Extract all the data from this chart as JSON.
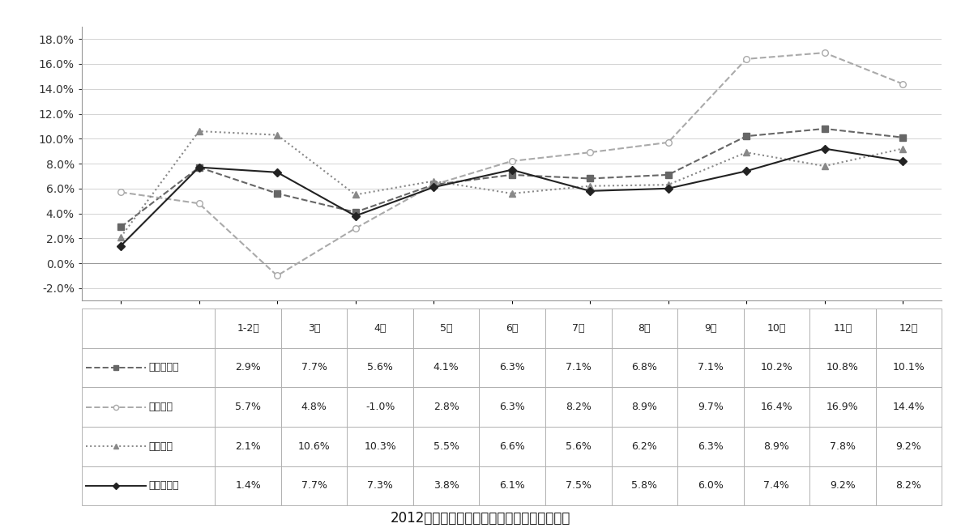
{
  "categories": [
    "1-2月",
    "3月",
    "4月",
    "5月",
    "6月",
    "7月",
    "8月",
    "9月",
    "10月",
    "11月",
    "12月"
  ],
  "series_names": [
    "工业增加值",
    "大型企业",
    "中型企业",
    "小微型企业"
  ],
  "series": {
    "工业增加值": [
      2.9,
      7.7,
      5.6,
      4.1,
      6.3,
      7.1,
      6.8,
      7.1,
      10.2,
      10.8,
      10.1
    ],
    "大型企业": [
      5.7,
      4.8,
      -1.0,
      2.8,
      6.3,
      8.2,
      8.9,
      9.7,
      16.4,
      16.9,
      14.4
    ],
    "中型企业": [
      2.1,
      10.6,
      10.3,
      5.5,
      6.6,
      5.6,
      6.2,
      6.3,
      8.9,
      7.8,
      9.2
    ],
    "小微型企业": [
      1.4,
      7.7,
      7.3,
      3.8,
      6.1,
      7.5,
      5.8,
      6.0,
      7.4,
      9.2,
      8.2
    ]
  },
  "colors": {
    "工业增加值": "#666666",
    "大型企业": "#aaaaaa",
    "中型企业": "#888888",
    "小微型企业": "#222222"
  },
  "linestyles": {
    "工业增加值": "--",
    "大型企业": "--",
    "中型企业": ":",
    "小微型企业": "-"
  },
  "markers": {
    "工业增加值": "s",
    "大型企业": "o",
    "中型企业": "^",
    "小微型企业": "D"
  },
  "marker_filled": {
    "工业增加值": true,
    "大型企业": false,
    "中型企业": true,
    "小微型企业": true
  },
  "ylim": [
    -3.0,
    19.0
  ],
  "yticks": [
    -2.0,
    0.0,
    2.0,
    4.0,
    6.0,
    8.0,
    10.0,
    12.0,
    14.0,
    16.0,
    18.0
  ],
  "title": "2012年某省规模以上工业增加值同比增速情况",
  "title_fontsize": 12,
  "tick_fontsize": 10,
  "table_fontsize": 9,
  "background_color": "#ffffff",
  "grid_color": "#cccccc",
  "spine_color": "#999999"
}
